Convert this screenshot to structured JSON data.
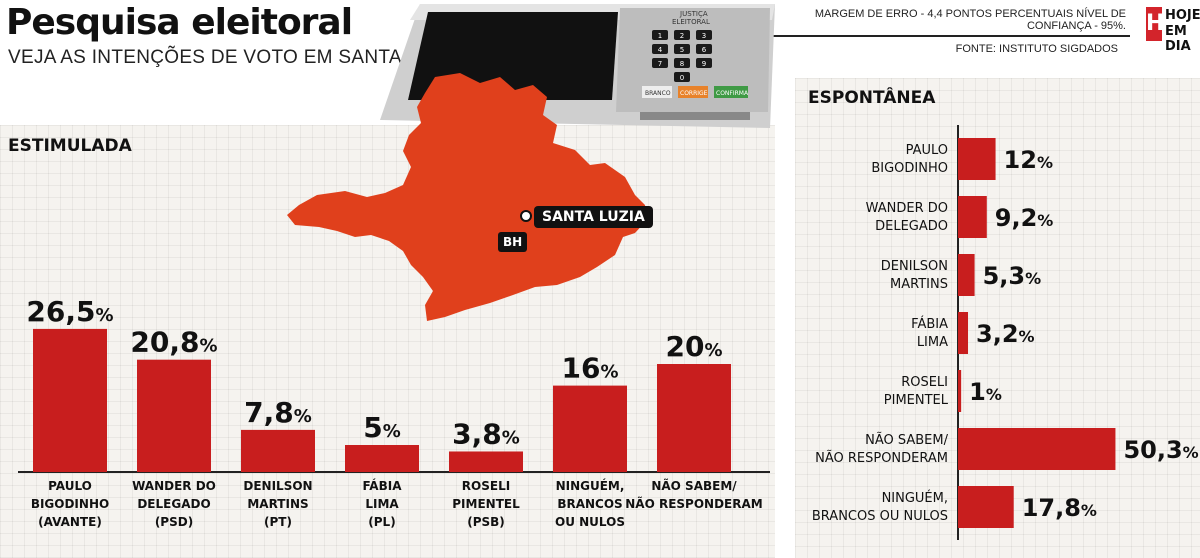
{
  "header": {
    "title": "Pesquisa eleitoral",
    "subtitle": "VEJA AS INTENÇÕES DE VOTO EM SANTA LUZIA",
    "margin_note": "MARGEM DE ERRO - 4,4 PONTOS PERCENTUAIS NÍVEL DE CONFIANÇA - 95%.",
    "source": "FONTE: INSTITUTO SIGDADOS"
  },
  "logo": {
    "letter": "H",
    "line1": "HOJE",
    "line2": "EM DIA",
    "color": "#d3242b"
  },
  "urna": {
    "label1": "JUSTIÇA",
    "label2": "ELEITORAL",
    "btn_branco": "BRANCO",
    "btn_corrige": "CORRIGE",
    "btn_confirma": "CONFIRMA",
    "keys": [
      "1",
      "2",
      "3",
      "4",
      "5",
      "6",
      "7",
      "8",
      "9",
      "0"
    ]
  },
  "map": {
    "city": "SANTA LUZIA",
    "capital": "BH",
    "color": "#e0401c"
  },
  "colors": {
    "bar": "#c81e1e",
    "axis": "#222222"
  },
  "chart_data": [
    {
      "type": "bar",
      "title": "ESTIMULADA",
      "categories": [
        [
          "PAULO",
          "BIGODINHO",
          "(AVANTE)"
        ],
        [
          "WANDER DO",
          "DELEGADO",
          "(PSD)"
        ],
        [
          "DENILSON",
          "MARTINS",
          "(PT)"
        ],
        [
          "FÁBIA",
          "LIMA",
          "(PL)"
        ],
        [
          "ROSELI",
          "PIMENTEL",
          "(PSB)"
        ],
        [
          "NINGUÉM,",
          "BRANCOS",
          "OU NULOS"
        ],
        [
          "NÃO SABEM/",
          "NÃO RESPONDERAM"
        ]
      ],
      "values": [
        26.5,
        20.8,
        7.8,
        5,
        3.8,
        16,
        20
      ],
      "labels": [
        "26,5",
        "20,8",
        "7,8",
        "5",
        "3,8",
        "16",
        "20"
      ],
      "unit": "%",
      "ylim": [
        0,
        30
      ]
    },
    {
      "type": "bar",
      "orientation": "horizontal",
      "title": "ESPONTÂNEA",
      "categories": [
        [
          "PAULO",
          "BIGODINHO"
        ],
        [
          "WANDER DO",
          "DELEGADO"
        ],
        [
          "DENILSON",
          "MARTINS"
        ],
        [
          "FÁBIA",
          "LIMA"
        ],
        [
          "ROSELI",
          "PIMENTEL"
        ],
        [
          "NÃO SABEM/",
          "NÃO RESPONDERAM"
        ],
        [
          "NINGUÉM,",
          "BRANCOS OU NULOS"
        ]
      ],
      "values": [
        12,
        9.2,
        5.3,
        3.2,
        1,
        50.3,
        17.8
      ],
      "labels": [
        "12",
        "9,2",
        "5,3",
        "3,2",
        "1",
        "50,3",
        "17,8"
      ],
      "unit": "%",
      "xlim": [
        0,
        55
      ]
    }
  ]
}
